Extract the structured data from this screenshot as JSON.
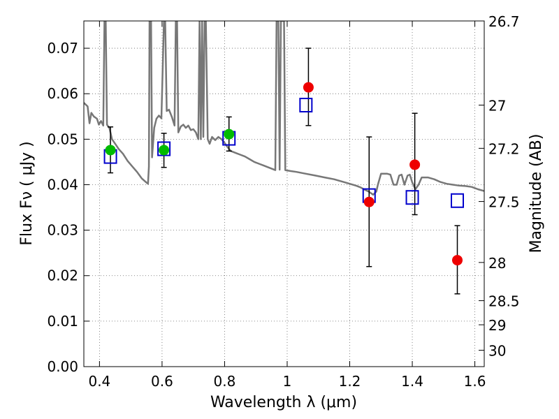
{
  "chart_data": {
    "type": "scatter",
    "xlabel": "Wavelength  λ (μm)",
    "ylabel": "Flux  Fν  ( μJy )",
    "ylabel_right": "Magnitude (AB)",
    "xlim": [
      0.35,
      1.63
    ],
    "ylim": [
      0.0,
      0.076
    ],
    "grid": true,
    "x_ticks": [
      0.4,
      0.6,
      0.8,
      1.0,
      1.2,
      1.4,
      1.6
    ],
    "x_tick_labels": [
      "0.4",
      "0.6",
      "0.8",
      "1",
      "1.2",
      "1.4",
      "1.6"
    ],
    "y_ticks": [
      0.0,
      0.01,
      0.02,
      0.03,
      0.04,
      0.05,
      0.06,
      0.07
    ],
    "y_tick_labels": [
      "0.00",
      "0.01",
      "0.02",
      "0.03",
      "0.04",
      "0.05",
      "0.06",
      "0.07"
    ],
    "mag_ticks": [
      {
        "flux": 0.076,
        "label": "26.7"
      },
      {
        "flux": 0.0575,
        "label": "27"
      },
      {
        "flux": 0.048,
        "label": "27.2"
      },
      {
        "flux": 0.0363,
        "label": "27.5"
      },
      {
        "flux": 0.0229,
        "label": "28"
      },
      {
        "flux": 0.0145,
        "label": "28.5"
      },
      {
        "flux": 0.0092,
        "label": "29"
      },
      {
        "flux": 0.0036,
        "label": "30"
      }
    ],
    "series": [
      {
        "marker": "circle",
        "color": "#00bb00",
        "points": [
          {
            "x": 0.435,
            "y": 0.0476,
            "err_lo": 0.0426,
            "err_hi": 0.0527
          },
          {
            "x": 0.606,
            "y": 0.0476,
            "err_lo": 0.0438,
            "err_hi": 0.0513
          },
          {
            "x": 0.814,
            "y": 0.0511,
            "err_lo": 0.0474,
            "err_hi": 0.0549
          }
        ]
      },
      {
        "marker": "circle",
        "color": "#ee0000",
        "points": [
          {
            "x": 1.068,
            "y": 0.0614,
            "err_lo": 0.053,
            "err_hi": 0.07
          },
          {
            "x": 1.262,
            "y": 0.0362,
            "err_lo": 0.022,
            "err_hi": 0.0505
          },
          {
            "x": 1.408,
            "y": 0.0444,
            "err_lo": 0.0334,
            "err_hi": 0.0557
          },
          {
            "x": 1.544,
            "y": 0.0234,
            "err_lo": 0.016,
            "err_hi": 0.031
          }
        ]
      },
      {
        "marker": "open-square",
        "color": "#0000cc",
        "points": [
          {
            "x": 0.435,
            "y": 0.0462
          },
          {
            "x": 0.606,
            "y": 0.0479
          },
          {
            "x": 0.814,
            "y": 0.0502
          },
          {
            "x": 1.06,
            "y": 0.0575
          },
          {
            "x": 1.262,
            "y": 0.0376
          },
          {
            "x": 1.4,
            "y": 0.0372
          },
          {
            "x": 1.544,
            "y": 0.0365
          }
        ]
      }
    ],
    "model_spectrum": {
      "color": "#777777",
      "points": [
        [
          0.35,
          0.058
        ],
        [
          0.362,
          0.0572
        ],
        [
          0.368,
          0.0535
        ],
        [
          0.374,
          0.0558
        ],
        [
          0.382,
          0.055
        ],
        [
          0.392,
          0.0545
        ],
        [
          0.398,
          0.0532
        ],
        [
          0.405,
          0.054
        ],
        [
          0.412,
          0.053
        ],
        [
          0.416,
          0.076
        ],
        [
          0.42,
          0.076
        ],
        [
          0.424,
          0.0532
        ],
        [
          0.432,
          0.0524
        ],
        [
          0.44,
          0.05
        ],
        [
          0.452,
          0.0488
        ],
        [
          0.462,
          0.0478
        ],
        [
          0.475,
          0.0468
        ],
        [
          0.49,
          0.0452
        ],
        [
          0.505,
          0.044
        ],
        [
          0.52,
          0.0428
        ],
        [
          0.535,
          0.0414
        ],
        [
          0.548,
          0.0406
        ],
        [
          0.555,
          0.0402
        ],
        [
          0.558,
          0.044
        ],
        [
          0.56,
          0.076
        ],
        [
          0.565,
          0.076
        ],
        [
          0.568,
          0.046
        ],
        [
          0.575,
          0.0525
        ],
        [
          0.582,
          0.0545
        ],
        [
          0.59,
          0.0552
        ],
        [
          0.598,
          0.0546
        ],
        [
          0.606,
          0.076
        ],
        [
          0.61,
          0.076
        ],
        [
          0.615,
          0.0562
        ],
        [
          0.622,
          0.0565
        ],
        [
          0.632,
          0.0548
        ],
        [
          0.64,
          0.053
        ],
        [
          0.644,
          0.076
        ],
        [
          0.648,
          0.076
        ],
        [
          0.652,
          0.0515
        ],
        [
          0.66,
          0.0528
        ],
        [
          0.668,
          0.0532
        ],
        [
          0.676,
          0.0525
        ],
        [
          0.684,
          0.053
        ],
        [
          0.692,
          0.052
        ],
        [
          0.7,
          0.0522
        ],
        [
          0.708,
          0.0515
        ],
        [
          0.716,
          0.05
        ],
        [
          0.72,
          0.076
        ],
        [
          0.724,
          0.05
        ],
        [
          0.728,
          0.076
        ],
        [
          0.732,
          0.0505
        ],
        [
          0.736,
          0.076
        ],
        [
          0.74,
          0.076
        ],
        [
          0.746,
          0.05
        ],
        [
          0.752,
          0.049
        ],
        [
          0.76,
          0.0505
        ],
        [
          0.77,
          0.0498
        ],
        [
          0.78,
          0.0505
        ],
        [
          0.79,
          0.05
        ],
        [
          0.8,
          0.0492
        ],
        [
          0.81,
          0.0482
        ],
        [
          0.82,
          0.0474
        ],
        [
          0.835,
          0.047
        ],
        [
          0.85,
          0.0466
        ],
        [
          0.865,
          0.0462
        ],
        [
          0.88,
          0.0456
        ],
        [
          0.895,
          0.045
        ],
        [
          0.91,
          0.0446
        ],
        [
          0.925,
          0.0442
        ],
        [
          0.94,
          0.0438
        ],
        [
          0.955,
          0.0434
        ],
        [
          0.962,
          0.0432
        ],
        [
          0.966,
          0.076
        ],
        [
          0.972,
          0.076
        ],
        [
          0.976,
          0.0433
        ],
        [
          0.98,
          0.076
        ],
        [
          0.99,
          0.076
        ],
        [
          0.994,
          0.0432
        ],
        [
          1.01,
          0.043
        ],
        [
          1.03,
          0.0428
        ],
        [
          1.06,
          0.0424
        ],
        [
          1.09,
          0.042
        ],
        [
          1.12,
          0.0416
        ],
        [
          1.15,
          0.0412
        ],
        [
          1.18,
          0.0406
        ],
        [
          1.2,
          0.0402
        ],
        [
          1.22,
          0.0398
        ],
        [
          1.235,
          0.0394
        ],
        [
          1.245,
          0.039
        ],
        [
          1.26,
          0.0385
        ],
        [
          1.275,
          0.0378
        ],
        [
          1.285,
          0.0385
        ],
        [
          1.29,
          0.04
        ],
        [
          1.3,
          0.0424
        ],
        [
          1.32,
          0.0424
        ],
        [
          1.33,
          0.0422
        ],
        [
          1.34,
          0.04
        ],
        [
          1.35,
          0.04
        ],
        [
          1.358,
          0.042
        ],
        [
          1.366,
          0.0422
        ],
        [
          1.375,
          0.04
        ],
        [
          1.385,
          0.042
        ],
        [
          1.392,
          0.0422
        ],
        [
          1.4,
          0.0405
        ],
        [
          1.41,
          0.039
        ],
        [
          1.42,
          0.04
        ],
        [
          1.43,
          0.0416
        ],
        [
          1.45,
          0.0416
        ],
        [
          1.47,
          0.0412
        ],
        [
          1.49,
          0.0406
        ],
        [
          1.51,
          0.0402
        ],
        [
          1.53,
          0.04
        ],
        [
          1.55,
          0.0398
        ],
        [
          1.57,
          0.0397
        ],
        [
          1.59,
          0.0395
        ],
        [
          1.61,
          0.039
        ],
        [
          1.63,
          0.0386
        ]
      ]
    }
  }
}
